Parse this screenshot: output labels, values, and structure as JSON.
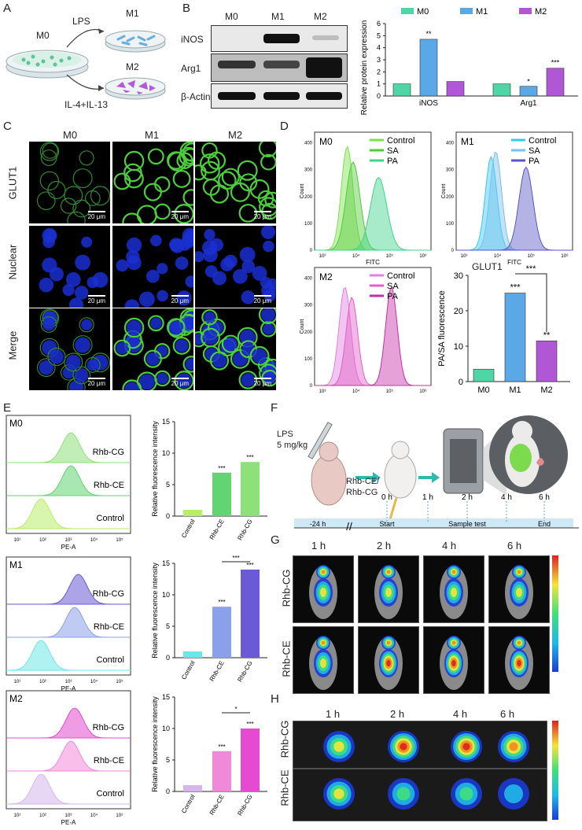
{
  "panels": {
    "A": "A",
    "B": "B",
    "C": "C",
    "D": "D",
    "E": "E",
    "F": "F",
    "G": "G",
    "H": "H"
  },
  "panelA": {
    "m0": "M0",
    "m1": "M1",
    "m2": "M2",
    "lps": "LPS",
    "il": "IL-4+IL-13"
  },
  "panelB": {
    "lanes": [
      "M0",
      "M1",
      "M2"
    ],
    "rows": [
      "iNOS",
      "Arg1",
      "β-Actin"
    ],
    "ylabel": "Relative protein expression",
    "legend": [
      "M0",
      "M1",
      "M2"
    ],
    "groups": [
      "iNOS",
      "Arg1"
    ],
    "yticks": [
      "0",
      "1",
      "2",
      "3",
      "4",
      "5",
      "6"
    ],
    "sig": [
      "**",
      "***",
      "*"
    ]
  },
  "panelC": {
    "cols": [
      "M0",
      "M1",
      "M2"
    ],
    "rows": [
      "GLUT1",
      "Nuclear",
      "Merge"
    ],
    "scale": "20 μm"
  },
  "panelD": {
    "hist": [
      {
        "title": "M0",
        "legend": [
          "Control",
          "SA",
          "PA"
        ]
      },
      {
        "title": "M1",
        "legend": [
          "Control",
          "SA",
          "PA"
        ]
      },
      {
        "title": "M2",
        "legend": [
          "Control",
          "SA",
          "PA"
        ]
      }
    ],
    "ylabel": "Count",
    "xlabel": "FITC",
    "xticks": [
      "10³",
      "10⁴",
      "10⁵",
      "10⁶"
    ],
    "yticks": [
      "0",
      "100",
      "200",
      "300",
      "400"
    ],
    "glut": "GLUT1",
    "barYlabel": "PA/SA fluorescence",
    "sig": [
      "***",
      "**",
      "***"
    ]
  },
  "panelE": {
    "groups": [
      "M0",
      "M1",
      "M2"
    ],
    "histLabels": [
      "Rhb-CG",
      "Rhb-CE",
      "Control"
    ],
    "xlabel": "PE-A",
    "xticks": [
      "10¹",
      "10²",
      "10³",
      "10⁴",
      "10⁵"
    ],
    "ylabel": "Relative fluorescence intensity",
    "cats": [
      "Control",
      "Rhb-CE",
      "Rhb-CG"
    ],
    "sig": [
      "***",
      "***",
      "*"
    ]
  },
  "panelF": {
    "dose": "LPS\n5 mg/kg",
    "inject": "Rhb-CE/\nRhb-CG",
    "times": [
      "0 h",
      "1 h",
      "2 h",
      "4 h",
      "6 h"
    ],
    "axis": [
      "-24 h",
      "Start",
      "Sample test",
      "End"
    ]
  },
  "panelG": {
    "times": [
      "1 h",
      "2 h",
      "4 h",
      "6 h"
    ],
    "rows": [
      "Rhb-CG",
      "Rhb-CE"
    ]
  },
  "panelH": {
    "times": [
      "1 h",
      "2 h",
      "4 h",
      "6 h"
    ],
    "rows": [
      "Rhb-CG",
      "Rhb-CE"
    ]
  },
  "colors": {
    "m0": "#4fd6a6",
    "m1": "#5aa9e6",
    "m2": "#b057d6",
    "green": "#6fdc4a",
    "pink": "#e048c0"
  },
  "chart_data": [
    {
      "type": "bar",
      "title": "",
      "ylabel": "Relative protein expression",
      "categories": [
        "iNOS",
        "Arg1"
      ],
      "series": [
        {
          "name": "M0",
          "values": [
            1.0,
            1.0
          ]
        },
        {
          "name": "M1",
          "values": [
            4.7,
            0.8
          ]
        },
        {
          "name": "M2",
          "values": [
            1.2,
            2.3
          ]
        }
      ],
      "ylim": [
        0,
        6
      ]
    },
    {
      "type": "bar",
      "title": "",
      "ylabel": "PA/SA fluorescence",
      "categories": [
        "M0",
        "M1",
        "M2"
      ],
      "values": [
        3.5,
        25,
        11.5
      ],
      "ylim": [
        0,
        30
      ]
    },
    {
      "type": "bar",
      "title": "M0",
      "ylabel": "Relative fluorescence intensity",
      "categories": [
        "Control",
        "Rhb-CE",
        "Rhb-CG"
      ],
      "values": [
        1,
        6.9,
        8.6
      ],
      "ylim": [
        0,
        15
      ]
    },
    {
      "type": "bar",
      "title": "M1",
      "ylabel": "Relative fluorescence intensity",
      "categories": [
        "Control",
        "Rhb-CE",
        "Rhb-CG"
      ],
      "values": [
        1,
        8.1,
        14
      ],
      "ylim": [
        0,
        15
      ]
    },
    {
      "type": "bar",
      "title": "M2",
      "ylabel": "Relative fluorescence intensity",
      "categories": [
        "Control",
        "Rhb-CE",
        "Rhb-CG"
      ],
      "values": [
        1,
        6.4,
        10
      ],
      "ylim": [
        0,
        15
      ]
    }
  ]
}
